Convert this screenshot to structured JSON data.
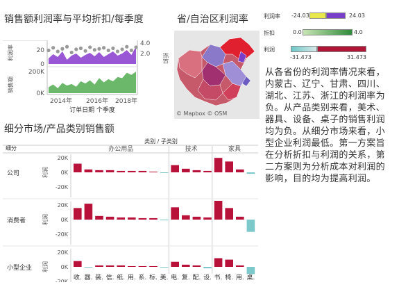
{
  "panels": {
    "top_left_title": "销售额利润率与平均折扣/每季度",
    "map_title": "省/自治区利润率",
    "bottom_title": "细分市场/产品类别销售额",
    "map_attribution": "© Mapbox © OSM",
    "description": "从各省份的利润率情况来看，内蒙古、辽宁、甘肃、四川、湖北、江苏、浙江的利润率为负。从产品类别来看，美术、器具、设备、桌子的销售利润均为负。从细分市场来看，小型企业利润最低。第一方案旨在分析折扣与利润的关系，第二方案则为分析成本对利润的影响，目的均为提高利润。"
  },
  "legends": {
    "profit_rate": {
      "label": "利润率",
      "min": "-24.03",
      "max": "24.03",
      "colors": [
        "#e8e84a",
        "#7a3fc8"
      ]
    },
    "discount": {
      "label": "折扣",
      "min": "0.0",
      "max": "4.0",
      "colors": [
        "#b8dca0",
        "#2e8b3a"
      ]
    },
    "profit": {
      "label": "利润",
      "min": "-31.473",
      "max": "31.473",
      "colors": [
        "#6fc9c9",
        "#c0103a"
      ]
    }
  },
  "chart_data": [
    {
      "type": "area",
      "title": "销售额利润率与平均折扣/每季度",
      "xlabel": "订单日期 个季度",
      "x_ticks": [
        "2014年",
        "2016年",
        "2018年"
      ],
      "panes": [
        {
          "ylabel": "利润率",
          "y_ticks": [
            "20",
            "0"
          ],
          "right_label": "折扣",
          "right_ticks": [
            "4.0",
            "2.0"
          ]
        },
        {
          "ylabel": "销售额",
          "y_ticks": [
            "200K",
            "0K"
          ]
        }
      ],
      "series": [
        {
          "name": "利润率",
          "values": [
            8,
            14,
            10,
            18,
            6,
            12,
            15,
            9,
            13,
            16,
            11,
            17,
            10,
            14,
            18,
            12,
            15,
            20,
            13,
            25
          ]
        },
        {
          "name": "折扣",
          "values": [
            2.6,
            3.1,
            2.4,
            2.9,
            3.3,
            2.2,
            2.8,
            3.0,
            2.5,
            3.2,
            2.7,
            2.9,
            3.1,
            2.6,
            3.0,
            2.4,
            2.8,
            3.3,
            2.6,
            3.2
          ]
        },
        {
          "name": "销售额",
          "values": [
            55,
            80,
            45,
            95,
            70,
            85,
            60,
            110,
            90,
            120,
            80,
            140,
            100,
            130,
            110,
            150,
            140,
            190,
            170,
            200
          ]
        }
      ]
    },
    {
      "type": "bar",
      "title": "细分市场/产品类别销售额",
      "header": "类别 / 子类别",
      "row_header": "细分",
      "measure_label": "利润",
      "categories_groups": [
        {
          "name": "办公用品",
          "subs": [
            "收",
            "器",
            "装",
            "信",
            "纸",
            "用",
            "系",
            "标",
            "美"
          ]
        },
        {
          "name": "技术",
          "subs": [
            "电",
            "复",
            "配",
            "设"
          ]
        },
        {
          "name": "家具",
          "subs": [
            "书",
            "椅",
            "用",
            "桌"
          ]
        }
      ],
      "y_ticks": [
        "20K",
        "0K",
        "-20K"
      ],
      "series": [
        {
          "name": "公司",
          "values": [
            12,
            4,
            3,
            3,
            2,
            2,
            2,
            1,
            -0.5,
            10,
            5,
            3,
            2,
            20,
            15,
            4,
            -2
          ]
        },
        {
          "name": "消费者",
          "values": [
            16,
            22,
            5,
            4,
            3,
            3,
            2,
            2,
            -1,
            17,
            6,
            4,
            3,
            26,
            16,
            4,
            -17
          ]
        },
        {
          "name": "小型企业",
          "values": [
            8,
            -1,
            2,
            2,
            2,
            1,
            1,
            1,
            -1,
            7,
            3,
            2,
            -2,
            12,
            10,
            2,
            -10
          ]
        }
      ]
    }
  ]
}
